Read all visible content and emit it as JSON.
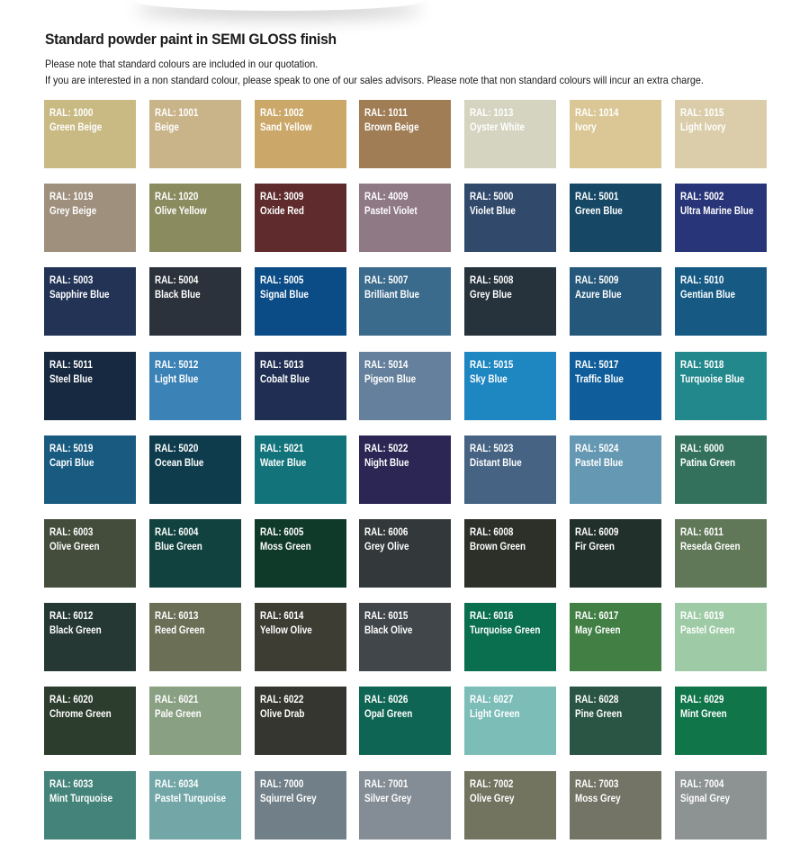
{
  "heading": "Standard powder paint in SEMI GLOSS finish",
  "notes": {
    "line1": "Please note that standard colours are included in our quotation.",
    "line2": "If you are interested in a non standard colour, please speak to one of our sales advisors. Please note that non standard colours will incur an extra charge."
  },
  "swatches": [
    {
      "code": "RAL: 1000",
      "name": "Green Beige",
      "color": "#c9ba84",
      "text": "#ffffff"
    },
    {
      "code": "RAL: 1001",
      "name": "Beige",
      "color": "#c9b48a",
      "text": "#ffffff"
    },
    {
      "code": "RAL: 1002",
      "name": "Sand Yellow",
      "color": "#cba869",
      "text": "#ffffff"
    },
    {
      "code": "RAL: 1011",
      "name": "Brown Beige",
      "color": "#a07d55",
      "text": "#ffffff"
    },
    {
      "code": "RAL: 1013",
      "name": "Oyster White",
      "color": "#d4d4c0",
      "text": "#ffffff"
    },
    {
      "code": "RAL: 1014",
      "name": "Ivory",
      "color": "#dbc796",
      "text": "#ffffff"
    },
    {
      "code": "RAL: 1015",
      "name": "Light Ivory",
      "color": "#dbcdaa",
      "text": "#ffffff"
    },
    {
      "code": "RAL: 1019",
      "name": "Grey Beige",
      "color": "#9f8f7d",
      "text": "#ffffff"
    },
    {
      "code": "RAL: 1020",
      "name": "Olive Yellow",
      "color": "#8a8c5f",
      "text": "#ffffff"
    },
    {
      "code": "RAL: 3009",
      "name": "Oxide Red",
      "color": "#5f2b2c",
      "text": "#ffffff"
    },
    {
      "code": "RAL: 4009",
      "name": "Pastel Violet",
      "color": "#8e7985",
      "text": "#ffffff"
    },
    {
      "code": "RAL: 5000",
      "name": "Violet Blue",
      "color": "#314a6c",
      "text": "#ffffff"
    },
    {
      "code": "RAL: 5001",
      "name": "Green Blue",
      "color": "#164866",
      "text": "#ffffff"
    },
    {
      "code": "RAL: 5002",
      "name": "Ultra Marine Blue",
      "color": "#283578",
      "text": "#ffffff"
    },
    {
      "code": "RAL: 5003",
      "name": "Sapphire Blue",
      "color": "#223356",
      "text": "#ffffff"
    },
    {
      "code": "RAL: 5004",
      "name": "Black Blue",
      "color": "#2b323b",
      "text": "#ffffff"
    },
    {
      "code": "RAL: 5005",
      "name": "Signal Blue",
      "color": "#0b4c87",
      "text": "#ffffff"
    },
    {
      "code": "RAL: 5007",
      "name": "Brilliant Blue",
      "color": "#3a6a8c",
      "text": "#ffffff"
    },
    {
      "code": "RAL: 5008",
      "name": "Grey Blue",
      "color": "#26323c",
      "text": "#ffffff"
    },
    {
      "code": "RAL: 5009",
      "name": "Azure Blue",
      "color": "#24577a",
      "text": "#ffffff"
    },
    {
      "code": "RAL: 5010",
      "name": "Gentian Blue",
      "color": "#165a84",
      "text": "#ffffff"
    },
    {
      "code": "RAL: 5011",
      "name": "Steel Blue",
      "color": "#172940",
      "text": "#ffffff"
    },
    {
      "code": "RAL: 5012",
      "name": "Light Blue",
      "color": "#3b82b7",
      "text": "#ffffff"
    },
    {
      "code": "RAL: 5013",
      "name": "Cobalt Blue",
      "color": "#1f2e52",
      "text": "#ffffff"
    },
    {
      "code": "RAL: 5014",
      "name": "Pigeon Blue",
      "color": "#64809c",
      "text": "#ffffff"
    },
    {
      "code": "RAL: 5015",
      "name": "Sky Blue",
      "color": "#1e86c0",
      "text": "#ffffff"
    },
    {
      "code": "RAL: 5017",
      "name": "Traffic Blue",
      "color": "#0f5e9b",
      "text": "#ffffff"
    },
    {
      "code": "RAL: 5018",
      "name": "Turquoise Blue",
      "color": "#23888c",
      "text": "#ffffff"
    },
    {
      "code": "RAL: 5019",
      "name": "Capri Blue",
      "color": "#195b80",
      "text": "#ffffff"
    },
    {
      "code": "RAL: 5020",
      "name": "Ocean Blue",
      "color": "#0f3c4c",
      "text": "#ffffff"
    },
    {
      "code": "RAL: 5021",
      "name": "Water Blue",
      "color": "#12747a",
      "text": "#ffffff"
    },
    {
      "code": "RAL: 5022",
      "name": "Night Blue",
      "color": "#2b2653",
      "text": "#ffffff"
    },
    {
      "code": "RAL: 5023",
      "name": "Distant Blue",
      "color": "#466383",
      "text": "#ffffff"
    },
    {
      "code": "RAL: 5024",
      "name": "Pastel Blue",
      "color": "#6598b2",
      "text": "#ffffff"
    },
    {
      "code": "RAL: 6000",
      "name": "Patina Green",
      "color": "#33715c",
      "text": "#ffffff"
    },
    {
      "code": "RAL: 6003",
      "name": "Olive Green",
      "color": "#444d3b",
      "text": "#ffffff"
    },
    {
      "code": "RAL: 6004",
      "name": "Blue Green",
      "color": "#11423f",
      "text": "#ffffff"
    },
    {
      "code": "RAL: 6005",
      "name": "Moss Green",
      "color": "#0f3a2a",
      "text": "#ffffff"
    },
    {
      "code": "RAL: 6006",
      "name": "Grey Olive",
      "color": "#33393a",
      "text": "#ffffff"
    },
    {
      "code": "RAL: 6008",
      "name": "Brown Green",
      "color": "#2d3029",
      "text": "#ffffff"
    },
    {
      "code": "RAL: 6009",
      "name": "Fir Green",
      "color": "#22302b",
      "text": "#ffffff"
    },
    {
      "code": "RAL: 6011",
      "name": "Reseda Green",
      "color": "#607858",
      "text": "#ffffff"
    },
    {
      "code": "RAL: 6012",
      "name": "Black Green",
      "color": "#263833",
      "text": "#ffffff"
    },
    {
      "code": "RAL: 6013",
      "name": "Reed Green",
      "color": "#6b6f56",
      "text": "#ffffff"
    },
    {
      "code": "RAL: 6014",
      "name": "Yellow Olive",
      "color": "#3d3d34",
      "text": "#ffffff"
    },
    {
      "code": "RAL: 6015",
      "name": "Black Olive",
      "color": "#41464a",
      "text": "#ffffff"
    },
    {
      "code": "RAL: 6016",
      "name": "Turquoise Green",
      "color": "#0a6f4f",
      "text": "#ffffff"
    },
    {
      "code": "RAL: 6017",
      "name": "May Green",
      "color": "#417f44",
      "text": "#ffffff"
    },
    {
      "code": "RAL: 6019",
      "name": "Pastel Green",
      "color": "#9ecba6",
      "text": "#ffffff"
    },
    {
      "code": "RAL: 6020",
      "name": "Chrome Green",
      "color": "#2d3d2d",
      "text": "#ffffff"
    },
    {
      "code": "RAL: 6021",
      "name": "Pale Green",
      "color": "#8aa083",
      "text": "#ffffff"
    },
    {
      "code": "RAL: 6022",
      "name": "Olive Drab",
      "color": "#363630",
      "text": "#ffffff"
    },
    {
      "code": "RAL: 6026",
      "name": "Opal Green",
      "color": "#0f6553",
      "text": "#ffffff"
    },
    {
      "code": "RAL: 6027",
      "name": "Light Green",
      "color": "#7cbdb8",
      "text": "#ffffff"
    },
    {
      "code": "RAL: 6028",
      "name": "Pine Green",
      "color": "#2a5444",
      "text": "#ffffff"
    },
    {
      "code": "RAL: 6029",
      "name": "Mint Green",
      "color": "#11754a",
      "text": "#ffffff"
    },
    {
      "code": "RAL: 6033",
      "name": "Mint Turquoise",
      "color": "#438379",
      "text": "#ffffff"
    },
    {
      "code": "RAL: 6034",
      "name": "Pastel Turquoise",
      "color": "#72a6a7",
      "text": "#ffffff"
    },
    {
      "code": "RAL: 7000",
      "name": "Sqiurrel Grey",
      "color": "#718088",
      "text": "#ffffff"
    },
    {
      "code": "RAL: 7001",
      "name": "Silver Grey",
      "color": "#848c95",
      "text": "#ffffff"
    },
    {
      "code": "RAL: 7002",
      "name": "Olive Grey",
      "color": "#727460",
      "text": "#ffffff"
    },
    {
      "code": "RAL: 7003",
      "name": "Moss Grey",
      "color": "#737465",
      "text": "#ffffff"
    },
    {
      "code": "RAL: 7004",
      "name": "Signal Grey",
      "color": "#8d9292",
      "text": "#ffffff"
    }
  ]
}
